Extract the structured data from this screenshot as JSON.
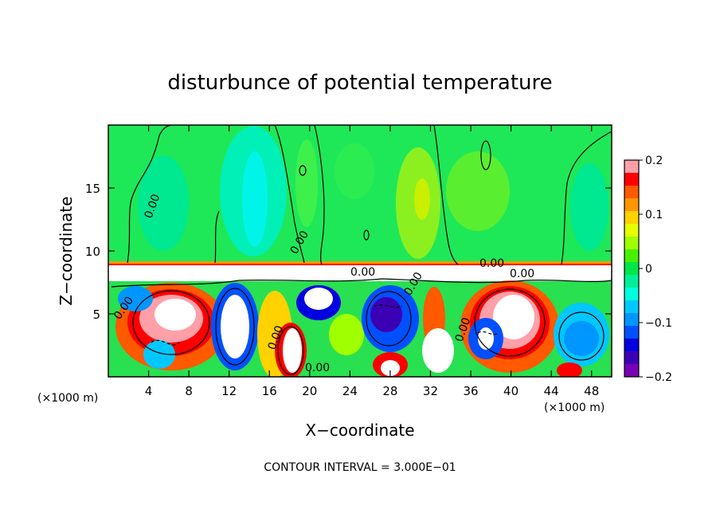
{
  "chart_data": {
    "type": "heatmap",
    "title": "disturbunce of potential temperature",
    "xlabel": "X−coordinate",
    "ylabel": "Z−coordinate",
    "x_unit_left": "(×1000 m)",
    "x_unit_right": "(×1000 m)",
    "xlim": [
      0,
      50
    ],
    "ylim": [
      0,
      20
    ],
    "x_ticks": [
      4,
      8,
      12,
      16,
      20,
      24,
      28,
      32,
      36,
      40,
      44,
      48
    ],
    "y_ticks": [
      5,
      10,
      15
    ],
    "colorbar": {
      "range": [
        -0.2,
        0.2
      ],
      "ticks": [
        0.2,
        0.1,
        0,
        -0.1,
        -0.2
      ],
      "tick_labels": [
        "0.2",
        "0.1",
        "0",
        "−0.1",
        "−0.2"
      ],
      "colors": [
        "#ff9fa8",
        "#ff0000",
        "#ff5a00",
        "#ff9600",
        "#ffd200",
        "#e6ff00",
        "#a0ff00",
        "#46f000",
        "#00e648",
        "#00f09a",
        "#00ffdc",
        "#00c8ff",
        "#0096ff",
        "#0050ff",
        "#0000e0",
        "#3c00b4",
        "#7800b4"
      ]
    },
    "contour_labels": [
      "0.00",
      "0.00",
      "0.00",
      "0.00",
      "0.00",
      "0.00",
      "0.00",
      "0.00",
      "0.00",
      "0.00"
    ],
    "footer": "CONTOUR INTERVAL = 3.000E−01"
  }
}
